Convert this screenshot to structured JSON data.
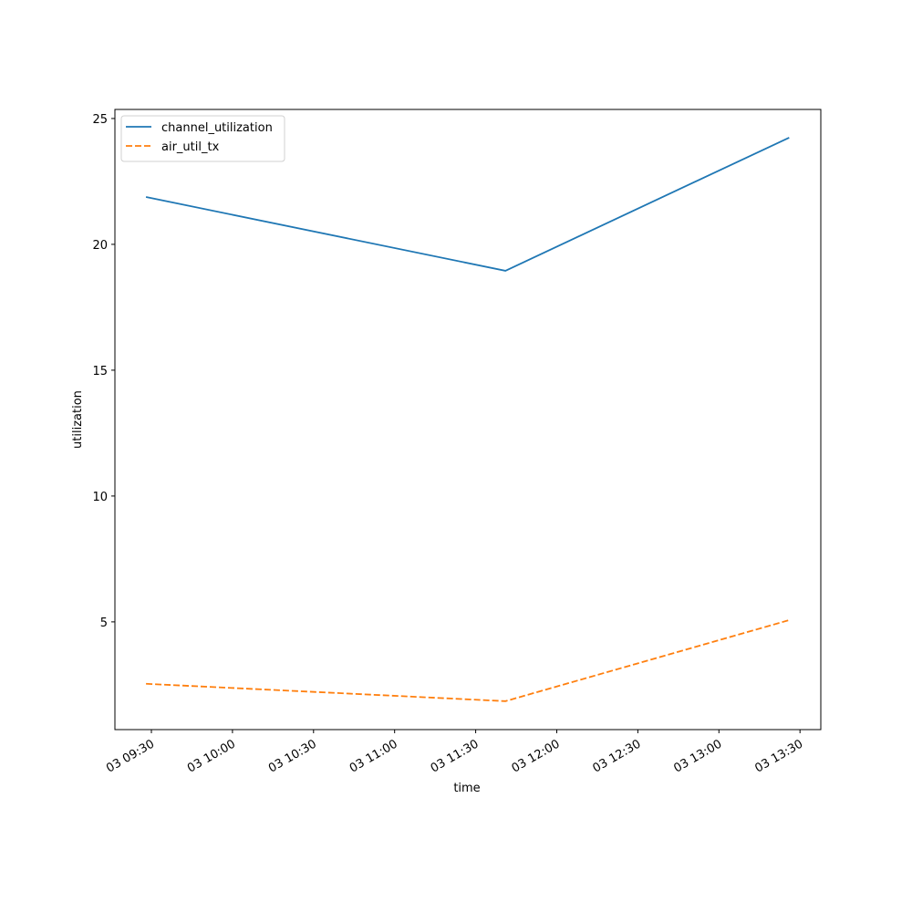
{
  "chart_data": {
    "type": "line",
    "xlabel": "time",
    "ylabel": "utilization",
    "x": [
      568,
      701,
      806
    ],
    "series": [
      {
        "name": "channel_utilization",
        "color": "#1f77b4",
        "linestyle": "solid",
        "values": [
          21.88,
          18.95,
          24.24
        ]
      },
      {
        "name": "air_util_tx",
        "color": "#ff7f0e",
        "linestyle": "dashed",
        "values": [
          2.54,
          1.85,
          5.07
        ]
      }
    ],
    "xlim": [
      556.5,
      817.7
    ],
    "xticks": [
      {
        "value": 570,
        "label": "03 09:30"
      },
      {
        "value": 600,
        "label": "03 10:00"
      },
      {
        "value": 630,
        "label": "03 10:30"
      },
      {
        "value": 660,
        "label": "03 11:00"
      },
      {
        "value": 690,
        "label": "03 11:30"
      },
      {
        "value": 720,
        "label": "03 12:00"
      },
      {
        "value": 750,
        "label": "03 12:30"
      },
      {
        "value": 780,
        "label": "03 13:00"
      },
      {
        "value": 810,
        "label": "03 13:30"
      }
    ],
    "ylim": [
      0.72,
      25.36
    ],
    "yticks": [
      5,
      10,
      15,
      20,
      25
    ],
    "legend": "upper left",
    "grid": false
  }
}
